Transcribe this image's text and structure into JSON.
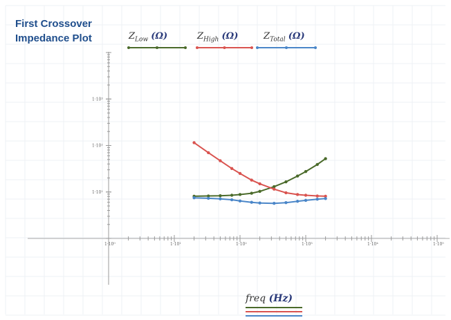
{
  "title_line1": "First Crossover",
  "title_line2": "Impedance Plot",
  "legend": [
    {
      "symbol": "Z",
      "sub": "Low",
      "unit": "(Ω)",
      "color": "#4a6a2a"
    },
    {
      "symbol": "Z",
      "sub": "High",
      "unit": "(Ω)",
      "color": "#d9534f"
    },
    {
      "symbol": "Z",
      "sub": "Total",
      "unit": "(Ω)",
      "color": "#4a86c8"
    }
  ],
  "x_axis_label": {
    "var": "freq",
    "unit": "(Hz)"
  },
  "chart_data": {
    "type": "line",
    "x_scale": "log",
    "y_scale": "log",
    "xlim": [
      1,
      100000
    ],
    "ylim": [
      1,
      10000
    ],
    "x_ticks": [
      "1·10⁰",
      "1·10¹",
      "1·10²",
      "1·10³",
      "1·10⁴",
      "1·10⁵"
    ],
    "y_ticks": [
      "1·10⁰",
      "1·10¹",
      "1·10²",
      "1·10³"
    ],
    "x": [
      20,
      33,
      50,
      75,
      100,
      150,
      200,
      330,
      500,
      750,
      1000,
      1500,
      2000
    ],
    "series": [
      {
        "name": "Z_Low (Ω)",
        "color": "#4a6a2a",
        "values": [
          8.1,
          8.2,
          8.3,
          8.5,
          8.8,
          9.4,
          10.3,
          13.0,
          16.5,
          22.0,
          27.5,
          39.0,
          52.0
        ]
      },
      {
        "name": "Z_High (Ω)",
        "color": "#d9534f",
        "values": [
          115,
          70,
          47,
          32,
          25,
          18,
          15,
          11.5,
          9.6,
          8.8,
          8.5,
          8.2,
          8.1
        ]
      },
      {
        "name": "Z_Total (Ω)",
        "color": "#4a86c8",
        "values": [
          7.5,
          7.3,
          7.1,
          6.8,
          6.4,
          6.0,
          5.8,
          5.7,
          5.9,
          6.3,
          6.6,
          7.0,
          7.2
        ]
      }
    ],
    "grid": true
  }
}
